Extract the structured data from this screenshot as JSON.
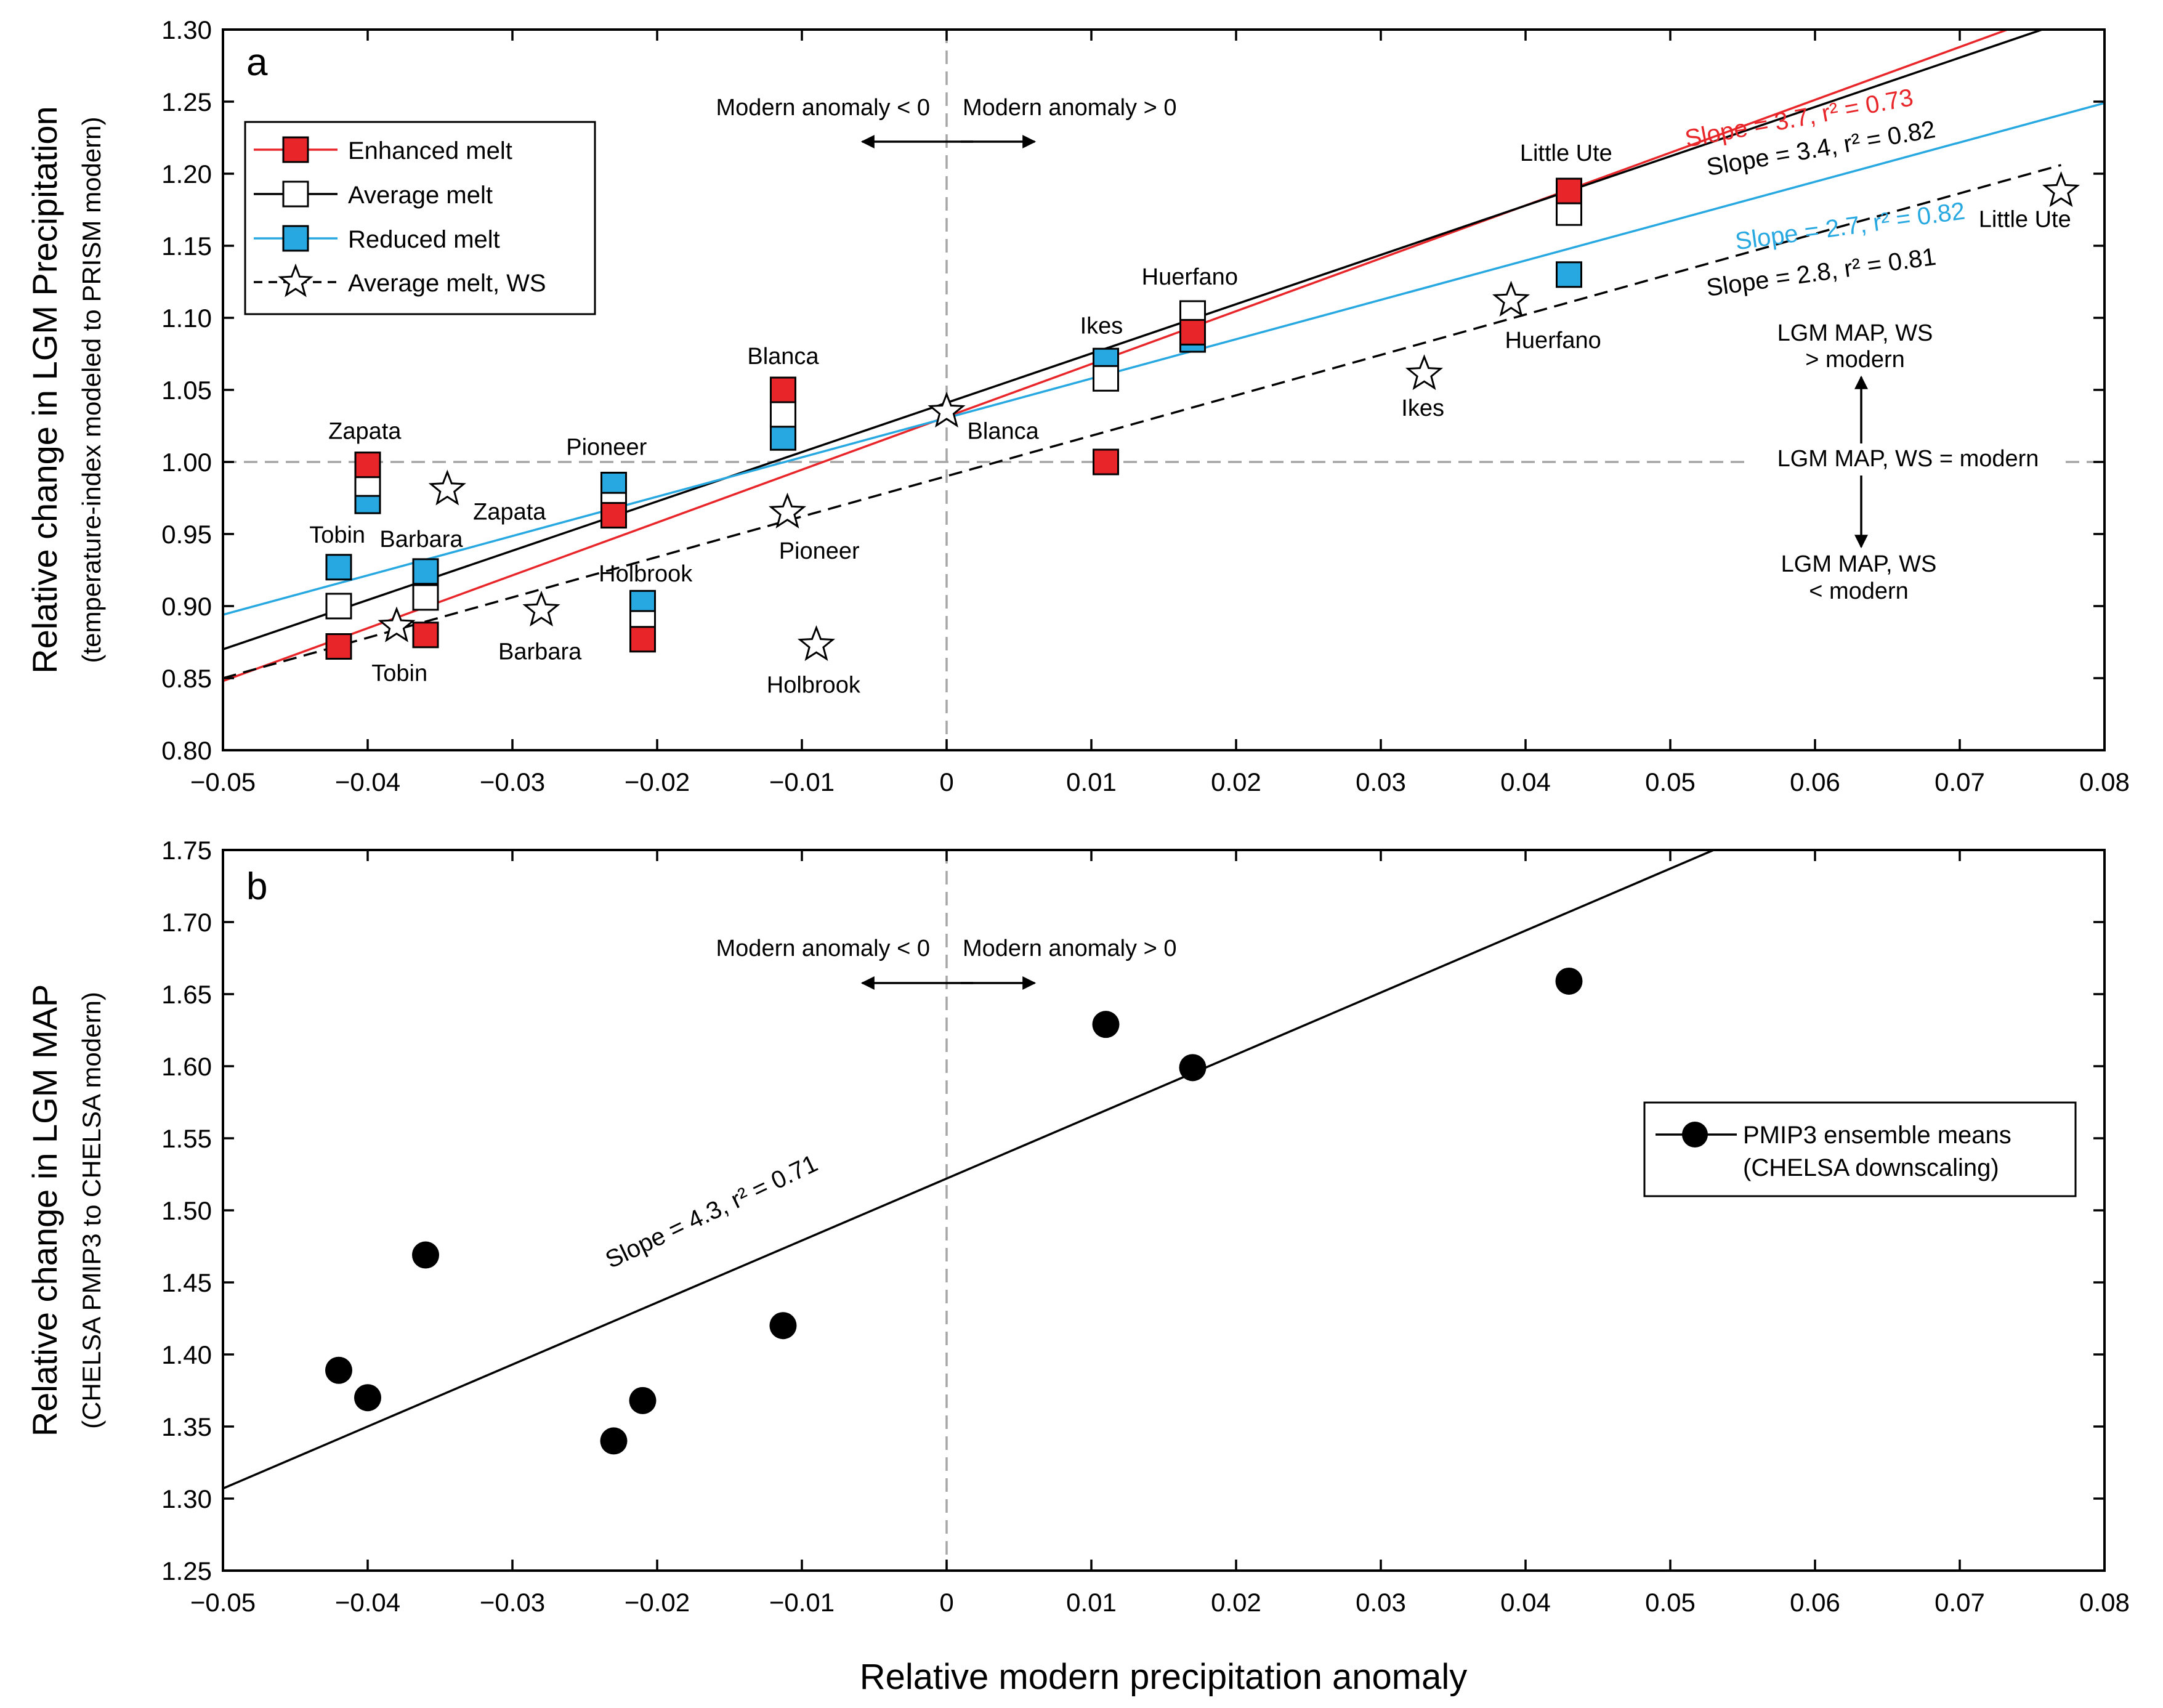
{
  "figure": {
    "xlabel": "Relative modern precipitation anomaly",
    "colors": {
      "red": "#e8262a",
      "black": "#000000",
      "blue": "#27a8e0",
      "gray": "#a6a6a6"
    }
  },
  "chart_data": [
    {
      "panel": "a",
      "type": "scatter",
      "panel_label": "a",
      "ylabel_main": "Relative change in LGM Precipitation",
      "ylabel_sub": "(temperature-index modeled to PRISM modern)",
      "xlim": [
        -0.05,
        0.08
      ],
      "ylim": [
        0.8,
        1.3
      ],
      "x_ticks": [
        -0.05,
        -0.04,
        -0.03,
        -0.02,
        -0.01,
        0,
        0.01,
        0.02,
        0.03,
        0.04,
        0.05,
        0.06,
        0.07,
        0.08
      ],
      "x_tick_labels": [
        "−0.05",
        "−0.04",
        "−0.03",
        "−0.02",
        "−0.01",
        "0",
        "0.01",
        "0.02",
        "0.03",
        "0.04",
        "0.05",
        "0.06",
        "0.07",
        "0.08"
      ],
      "y_ticks": [
        0.8,
        0.85,
        0.9,
        0.95,
        1.0,
        1.05,
        1.1,
        1.15,
        1.2,
        1.25,
        1.3
      ],
      "y_tick_labels": [
        "0.80",
        "0.85",
        "0.90",
        "0.95",
        "1.00",
        "1.05",
        "1.10",
        "1.15",
        "1.20",
        "1.25",
        "1.30"
      ],
      "legend": [
        {
          "label": "Enhanced melt",
          "marker": "square",
          "fill": "#e8262a",
          "line": "#e8262a"
        },
        {
          "label": "Average melt",
          "marker": "square",
          "fill": "#ffffff",
          "line": "#000000"
        },
        {
          "label": "Reduced melt",
          "marker": "square",
          "fill": "#27a8e0",
          "line": "#27a8e0"
        },
        {
          "label": "Average melt, WS",
          "marker": "star",
          "fill": "#ffffff",
          "line": "#000000",
          "dash": true
        }
      ],
      "series": [
        {
          "name": "Enhanced melt",
          "color": "#e8262a",
          "points": [
            {
              "x": -0.042,
              "y": 0.872
            },
            {
              "x": -0.04,
              "y": 0.998
            },
            {
              "x": -0.036,
              "y": 0.88
            },
            {
              "x": -0.023,
              "y": 0.963
            },
            {
              "x": -0.021,
              "y": 0.877
            },
            {
              "x": -0.0113,
              "y": 1.05
            },
            {
              "x": 0.011,
              "y": 1.0
            },
            {
              "x": 0.017,
              "y": 1.09
            },
            {
              "x": 0.043,
              "y": 1.188
            }
          ]
        },
        {
          "name": "Average melt",
          "color": "#000000",
          "points": [
            {
              "x": -0.042,
              "y": 0.9
            },
            {
              "x": -0.04,
              "y": 0.985
            },
            {
              "x": -0.036,
              "y": 0.906
            },
            {
              "x": -0.023,
              "y": 0.97
            },
            {
              "x": -0.021,
              "y": 0.888
            },
            {
              "x": -0.0113,
              "y": 1.033
            },
            {
              "x": 0.011,
              "y": 1.058
            },
            {
              "x": 0.017,
              "y": 1.103
            },
            {
              "x": 0.043,
              "y": 1.173
            }
          ]
        },
        {
          "name": "Reduced melt",
          "color": "#27a8e0",
          "points": [
            {
              "x": -0.042,
              "y": 0.927
            },
            {
              "x": -0.04,
              "y": 0.973
            },
            {
              "x": -0.036,
              "y": 0.924
            },
            {
              "x": -0.023,
              "y": 0.984
            },
            {
              "x": -0.021,
              "y": 0.902
            },
            {
              "x": -0.0113,
              "y": 1.017
            },
            {
              "x": 0.011,
              "y": 1.07
            },
            {
              "x": 0.017,
              "y": 1.085
            },
            {
              "x": 0.043,
              "y": 1.13
            }
          ]
        },
        {
          "name": "Average melt, WS",
          "color": "#000000",
          "points": [
            {
              "x": -0.038,
              "y": 0.886
            },
            {
              "x": -0.0345,
              "y": 0.981
            },
            {
              "x": -0.028,
              "y": 0.897
            },
            {
              "x": -0.011,
              "y": 0.965
            },
            {
              "x": -0.009,
              "y": 0.873
            },
            {
              "x": 0.0,
              "y": 1.035
            },
            {
              "x": 0.033,
              "y": 1.061
            },
            {
              "x": 0.039,
              "y": 1.112
            },
            {
              "x": 0.077,
              "y": 1.188
            }
          ]
        }
      ],
      "site_labels": [
        {
          "text": "Zapata",
          "x": -0.0402,
          "y": 1.016
        },
        {
          "text": "Tobin",
          "x": -0.0421,
          "y": 0.944
        },
        {
          "text": "Barbara",
          "x": -0.0363,
          "y": 0.941
        },
        {
          "text": "Pioneer",
          "x": -0.0235,
          "y": 1.005
        },
        {
          "text": "Holbrook",
          "x": -0.0208,
          "y": 0.917
        },
        {
          "text": "Blanca",
          "x": -0.0113,
          "y": 1.068
        },
        {
          "text": "Ikes",
          "x": 0.0107,
          "y": 1.089
        },
        {
          "text": "Huerfano",
          "x": 0.0168,
          "y": 1.123
        },
        {
          "text": "Little Ute",
          "x": 0.0428,
          "y": 1.209
        },
        {
          "text": "Zapata",
          "x": -0.0302,
          "y": 0.96
        },
        {
          "text": "Tobin",
          "x": -0.0378,
          "y": 0.848
        },
        {
          "text": "Barbara",
          "x": -0.0281,
          "y": 0.863
        },
        {
          "text": "Pioneer",
          "x": -0.0088,
          "y": 0.933
        },
        {
          "text": "Holbrook",
          "x": -0.0092,
          "y": 0.84
        },
        {
          "text": "Blanca",
          "x": 0.0039,
          "y": 1.016
        },
        {
          "text": "Ikes",
          "x": 0.0329,
          "y": 1.032
        },
        {
          "text": "Huerfano",
          "x": 0.0419,
          "y": 1.079
        },
        {
          "text": "Little Ute",
          "x": 0.0745,
          "y": 1.163
        }
      ],
      "fits": [
        {
          "name": "Enhanced melt fit",
          "color": "#e8262a",
          "dashed": false,
          "x": [
            -0.05,
            0.0733
          ],
          "y": [
            0.848,
            1.3
          ],
          "label": "Slope = 3.7, r² = 0.73",
          "label_x": 0.059,
          "label_y": 1.233,
          "label_angle": -10.5
        },
        {
          "name": "Average melt fit",
          "color": "#000000",
          "dashed": false,
          "x": [
            -0.05,
            0.0757
          ],
          "y": [
            0.87,
            1.3
          ],
          "label": "Slope = 3.4, r² = 0.82",
          "label_x": 0.0605,
          "label_y": 1.212,
          "label_angle": -9.6
        },
        {
          "name": "Reduced melt fit",
          "color": "#27a8e0",
          "dashed": false,
          "x": [
            -0.05,
            0.08
          ],
          "y": [
            0.894,
            1.249
          ],
          "label": "Slope = 2.7, r² = 0.82",
          "label_x": 0.0625,
          "label_y": 1.158,
          "label_angle": -7.7
        },
        {
          "name": "Average melt, WS fit",
          "color": "#000000",
          "dashed": true,
          "x": [
            -0.05,
            0.077
          ],
          "y": [
            0.85,
            1.206
          ],
          "label": "Slope = 2.8, r² = 0.81",
          "label_x": 0.0605,
          "label_y": 1.126,
          "label_angle": -7.9
        }
      ],
      "annotations": {
        "anomaly_neg": "Modern anomaly < 0",
        "anomaly_pos": "Modern anomaly > 0",
        "map_above_1": "LGM MAP, WS",
        "map_above_2": "> modern",
        "map_equal": "LGM MAP, WS = modern",
        "map_below_1": "LGM MAP, WS",
        "map_below_2": "< modern"
      }
    },
    {
      "panel": "b",
      "type": "scatter",
      "panel_label": "b",
      "ylabel_main": "Relative change in LGM MAP",
      "ylabel_sub": "(CHELSA PMIP3 to CHELSA modern)",
      "xlim": [
        -0.05,
        0.08
      ],
      "ylim": [
        1.25,
        1.75
      ],
      "x_ticks": [
        -0.05,
        -0.04,
        -0.03,
        -0.02,
        -0.01,
        0,
        0.01,
        0.02,
        0.03,
        0.04,
        0.05,
        0.06,
        0.07,
        0.08
      ],
      "x_tick_labels": [
        "−0.05",
        "−0.04",
        "−0.03",
        "−0.02",
        "−0.01",
        "0",
        "0.01",
        "0.02",
        "0.03",
        "0.04",
        "0.05",
        "0.06",
        "0.07",
        "0.08"
      ],
      "y_ticks": [
        1.25,
        1.3,
        1.35,
        1.4,
        1.45,
        1.5,
        1.55,
        1.6,
        1.65,
        1.7,
        1.75
      ],
      "y_tick_labels": [
        "1.25",
        "1.30",
        "1.35",
        "1.40",
        "1.45",
        "1.50",
        "1.55",
        "1.60",
        "1.65",
        "1.70",
        "1.75"
      ],
      "legend": [
        {
          "label_1": "PMIP3 ensemble means",
          "label_2": "(CHELSA downscaling)",
          "marker": "circle"
        }
      ],
      "series": [
        {
          "name": "PMIP3 ensemble means",
          "color": "#000000",
          "points": [
            {
              "x": -0.042,
              "y": 1.389
            },
            {
              "x": -0.04,
              "y": 1.37
            },
            {
              "x": -0.036,
              "y": 1.469
            },
            {
              "x": -0.023,
              "y": 1.34
            },
            {
              "x": -0.021,
              "y": 1.368
            },
            {
              "x": -0.0113,
              "y": 1.42
            },
            {
              "x": 0.011,
              "y": 1.629
            },
            {
              "x": 0.017,
              "y": 1.599
            },
            {
              "x": 0.043,
              "y": 1.659
            }
          ]
        }
      ],
      "fits": [
        {
          "name": "PMIP3 fit",
          "color": "#000000",
          "dashed": false,
          "x": [
            -0.05,
            0.053
          ],
          "y": [
            1.307,
            1.75
          ],
          "label": "Slope = 4.3, r² = 0.71",
          "label_x": -0.016,
          "label_y": 1.494,
          "label_angle": -25.5
        }
      ],
      "annotations": {
        "anomaly_neg": "Modern anomaly < 0",
        "anomaly_pos": "Modern anomaly > 0"
      }
    }
  ]
}
